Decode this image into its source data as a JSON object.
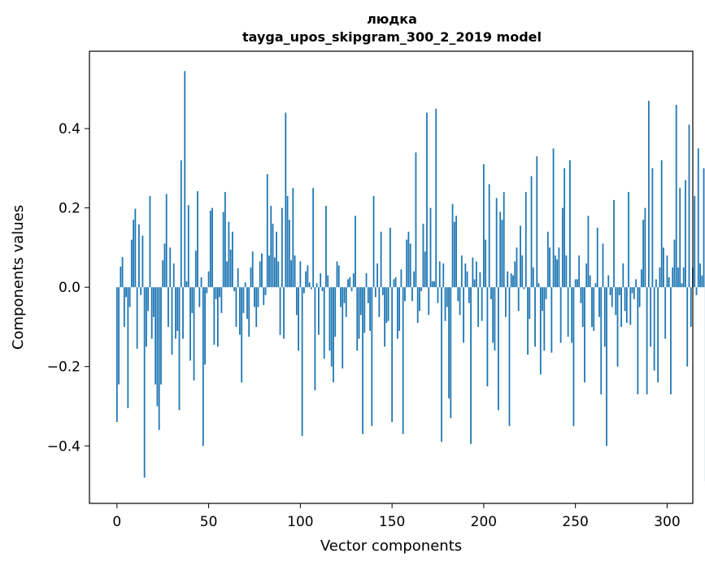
{
  "chart_data": {
    "type": "bar",
    "title": "людка",
    "subtitle": "tayga_upos_skipgram_300_2_2019 model",
    "xlabel": "Vector components",
    "ylabel": "Components values",
    "xlim": [
      -15,
      314
    ],
    "ylim": [
      -0.545,
      0.595
    ],
    "xticks": [
      0,
      50,
      100,
      150,
      200,
      250,
      300
    ],
    "xtick_labels": [
      "0",
      "50",
      "100",
      "150",
      "200",
      "250",
      "300"
    ],
    "yticks": [
      -0.4,
      -0.2,
      0.0,
      0.2,
      0.4
    ],
    "ytick_labels": [
      "−0.4",
      "−0.2",
      "0.0",
      "0.2",
      "0.4"
    ],
    "color": "#1f77b4",
    "values": [
      -0.34,
      -0.245,
      0.052,
      0.076,
      -0.1,
      -0.025,
      -0.305,
      -0.05,
      0.12,
      0.17,
      0.198,
      -0.155,
      0.158,
      -0.02,
      0.13,
      -0.48,
      -0.15,
      -0.06,
      0.23,
      -0.13,
      -0.075,
      -0.245,
      -0.3,
      -0.36,
      -0.245,
      0.068,
      0.11,
      0.235,
      -0.1,
      0.1,
      -0.17,
      0.06,
      -0.13,
      -0.11,
      -0.31,
      0.32,
      -0.13,
      0.545,
      0.015,
      0.207,
      -0.185,
      -0.065,
      -0.235,
      0.092,
      0.242,
      -0.05,
      0.025,
      -0.4,
      -0.195,
      -0.015,
      0.04,
      0.193,
      0.2,
      -0.145,
      -0.03,
      -0.15,
      -0.025,
      -0.065,
      0.19,
      0.24,
      0.065,
      0.165,
      0.095,
      0.14,
      -0.01,
      -0.1,
      0.048,
      -0.12,
      -0.24,
      -0.065,
      0.012,
      -0.08,
      -0.125,
      0.05,
      0.09,
      -0.05,
      -0.1,
      -0.05,
      0.065,
      0.085,
      -0.045,
      -0.02,
      0.285,
      0.08,
      0.205,
      0.16,
      0.075,
      0.14,
      0.065,
      -0.12,
      0.2,
      -0.13,
      0.44,
      0.23,
      0.17,
      0.068,
      0.25,
      0.08,
      -0.07,
      -0.16,
      0.065,
      -0.375,
      -0.015,
      0.04,
      0.055,
      0.012,
      -0.005,
      0.25,
      -0.26,
      0.01,
      -0.12,
      0.035,
      -0.01,
      -0.18,
      0.205,
      0.03,
      -0.16,
      -0.2,
      -0.24,
      -0.125,
      0.065,
      0.055,
      -0.05,
      -0.205,
      -0.04,
      -0.075,
      0.02,
      0.025,
      -0.01,
      0.035,
      0.18,
      -0.16,
      -0.13,
      -0.07,
      -0.37,
      -0.115,
      0.035,
      -0.04,
      -0.11,
      -0.35,
      0.23,
      -0.025,
      0.06,
      -0.075,
      0.14,
      -0.02,
      -0.15,
      -0.09,
      -0.085,
      0.15,
      -0.34,
      0.02,
      0.025,
      -0.13,
      -0.11,
      0.045,
      -0.37,
      -0.035,
      0.12,
      0.14,
      0.11,
      -0.035,
      0.04,
      0.34,
      -0.09,
      -0.06,
      -0.01,
      0.16,
      0.09,
      0.44,
      -0.07,
      0.2,
      0.015,
      0.015,
      0.45,
      -0.04,
      0.065,
      -0.39,
      0.06,
      -0.085,
      -0.05,
      -0.28,
      -0.33,
      0.21,
      0.165,
      0.18,
      -0.035,
      -0.07,
      0.08,
      -0.14,
      0.06,
      0.04,
      -0.04,
      -0.395,
      0.075,
      0.02,
      0.065,
      -0.1,
      0.038,
      -0.085,
      0.31,
      0.12,
      -0.25,
      0.26,
      -0.03,
      -0.14,
      -0.16,
      0.225,
      -0.31,
      0.19,
      0.17,
      0.24,
      -0.075,
      0.04,
      -0.35,
      0.035,
      0.03,
      0.065,
      0.1,
      -0.06,
      0.155,
      0.08,
      -0.005,
      0.24,
      -0.17,
      -0.08,
      0.28,
      0.05,
      -0.15,
      0.33,
      0.01,
      -0.22,
      -0.06,
      -0.16,
      -0.03,
      0.14,
      0.1,
      -0.165,
      0.35,
      0.08,
      0.07,
      0.1,
      -0.14,
      0.2,
      0.3,
      0.08,
      -0.125,
      0.32,
      -0.14,
      -0.35,
      0.02,
      0.02,
      0.08,
      -0.04,
      -0.1,
      -0.24,
      0.06,
      0.18,
      0.03,
      -0.1,
      -0.11,
      0.01,
      0.15,
      -0.075,
      -0.27,
      0.11,
      -0.15,
      -0.4,
      0.03,
      -0.02,
      -0.05,
      0.22,
      -0.07,
      -0.2,
      -0.02,
      -0.1,
      0.06,
      -0.06,
      -0.09,
      0.24,
      -0.095,
      -0.015,
      -0.03,
      0.02,
      -0.27,
      -0.05,
      0.045,
      0.17,
      0.2,
      -0.27,
      0.47,
      -0.15,
      0.3,
      -0.21,
      0.02,
      -0.24,
      0.05,
      0.32,
      0.1,
      -0.13,
      0.08,
      0.025,
      -0.27,
      0.05,
      0.12,
      0.46,
      0.05,
      0.25,
      0.01,
      0.05,
      0.27,
      -0.2,
      0.41,
      -0.1,
      0.05,
      0.23,
      -0.02,
      0.35,
      0.06,
      0.03,
      0.3,
      -0.49
    ]
  }
}
